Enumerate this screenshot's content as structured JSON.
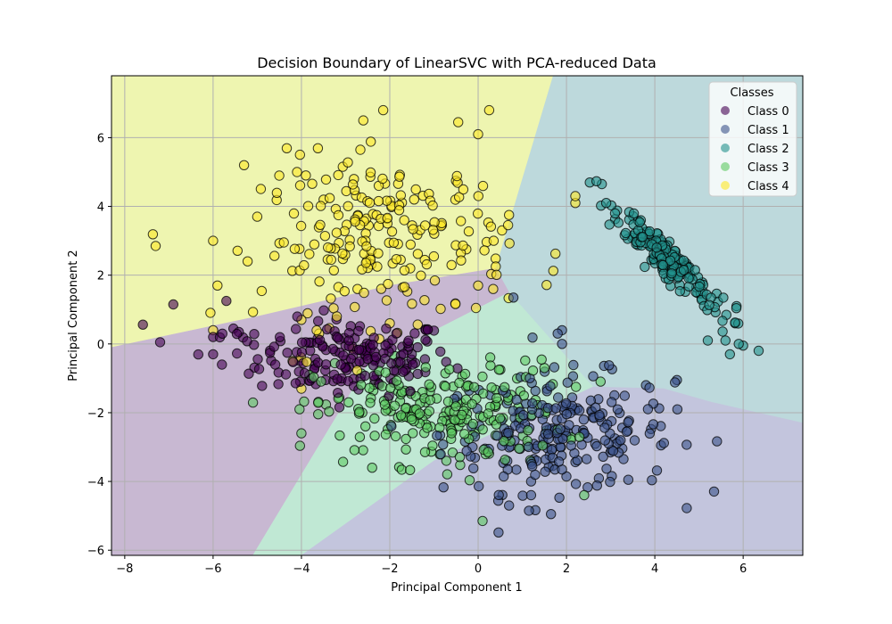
{
  "chart_data": {
    "type": "scatter",
    "title": "Decision Boundary of LinearSVC with PCA-reduced Data",
    "xlabel": "Principal Component 1",
    "ylabel": "Principal Component 2",
    "xlim": [
      -8.3,
      7.35
    ],
    "ylim": [
      -6.15,
      7.8
    ],
    "xticks": [
      -8,
      -6,
      -4,
      -2,
      0,
      2,
      4,
      6
    ],
    "yticks": [
      -6,
      -4,
      -2,
      0,
      2,
      4,
      6
    ],
    "xtick_labels": [
      "−8",
      "−6",
      "−4",
      "−2",
      "0",
      "2",
      "4",
      "6"
    ],
    "ytick_labels": [
      "−6",
      "−4",
      "−2",
      "0",
      "2",
      "4",
      "6"
    ],
    "grid": true,
    "legend": {
      "title": "Classes",
      "position": "top-right"
    },
    "regions": [
      {
        "class": "Class 4",
        "color": "#eef5b0",
        "polygon": [
          [
            -8.3,
            -0.1
          ],
          [
            -5.0,
            0.8
          ],
          [
            -2.0,
            1.7
          ],
          [
            0.4,
            2.2
          ],
          [
            1.7,
            7.8
          ],
          [
            -8.3,
            7.8
          ]
        ]
      },
      {
        "class": "Class 2",
        "color": "#bdd9dc",
        "polygon": [
          [
            1.7,
            7.8
          ],
          [
            7.35,
            7.8
          ],
          [
            7.35,
            -2.3
          ],
          [
            5.3,
            -1.7
          ],
          [
            4.2,
            -1.3
          ],
          [
            2.6,
            -1.25
          ],
          [
            0.7,
            1.5
          ],
          [
            0.4,
            2.2
          ]
        ]
      },
      {
        "class": "Class 0",
        "color": "#c8b8d2",
        "polygon": [
          [
            -8.3,
            -0.1
          ],
          [
            -5.0,
            0.8
          ],
          [
            -2.0,
            1.7
          ],
          [
            0.4,
            2.2
          ],
          [
            0.7,
            1.5
          ],
          [
            -2.5,
            -0.6
          ],
          [
            -5.1,
            -6.15
          ],
          [
            -8.3,
            -6.15
          ]
        ]
      },
      {
        "class": "Class 3",
        "color": "#c0e8d4",
        "polygon": [
          [
            -5.1,
            -6.15
          ],
          [
            -2.5,
            -0.6
          ],
          [
            0.7,
            1.5
          ],
          [
            2.6,
            -1.25
          ],
          [
            -1.0,
            -3.4
          ],
          [
            -4.0,
            -6.15
          ]
        ]
      },
      {
        "class": "Class 1",
        "color": "#c3c5dd",
        "polygon": [
          [
            -4.0,
            -6.15
          ],
          [
            -1.0,
            -3.4
          ],
          [
            2.6,
            -1.25
          ],
          [
            4.2,
            -1.3
          ],
          [
            5.3,
            -1.7
          ],
          [
            7.35,
            -2.3
          ],
          [
            7.35,
            -6.15
          ]
        ]
      }
    ],
    "series": [
      {
        "name": "Class 0",
        "color": "#440154",
        "clusters": [
          {
            "center": [
              -2.8,
              -0.4
            ],
            "spread": [
              1.1,
              0.55
            ],
            "count": 170
          },
          {
            "center": [
              -5.5,
              0.1
            ],
            "spread": [
              0.6,
              0.4
            ],
            "count": 12
          }
        ],
        "points": [
          [
            -6.9,
            1.15
          ],
          [
            -5.7,
            1.25
          ],
          [
            -7.2,
            0.05
          ],
          [
            -6.0,
            0.2
          ],
          [
            -5.8,
            -0.6
          ],
          [
            -6.0,
            -0.3
          ]
        ]
      },
      {
        "name": "Class 1",
        "color": "#3b528b",
        "clusters": [
          {
            "center": [
              1.8,
              -2.6
            ],
            "spread": [
              1.3,
              0.85
            ],
            "count": 230
          }
        ],
        "points": [
          [
            0.8,
            1.35
          ],
          [
            1.8,
            0.3
          ],
          [
            1.9,
            0.4
          ],
          [
            1.9,
            -0.0
          ],
          [
            3.8,
            -1.2
          ],
          [
            4.5,
            -1.05
          ],
          [
            3.4,
            -3.95
          ],
          [
            0.7,
            -4.7
          ],
          [
            1.2,
            -4.4
          ],
          [
            1.15,
            -4.85
          ],
          [
            1.65,
            -4.95
          ],
          [
            1.2,
            -4.0
          ]
        ]
      },
      {
        "name": "Class 2",
        "color": "#21918c",
        "clusters": [
          {
            "center": [
              4.3,
              2.4
            ],
            "spread": [
              0.6,
              0.9
            ],
            "count": 180
          }
        ],
        "points": [
          [
            2.8,
            4.65
          ],
          [
            2.9,
            4.1
          ],
          [
            3.1,
            3.8
          ],
          [
            5.6,
            0.1
          ],
          [
            5.9,
            0.0
          ],
          [
            6.0,
            -0.05
          ],
          [
            6.35,
            -0.2
          ],
          [
            5.85,
            1.1
          ],
          [
            5.7,
            -0.3
          ],
          [
            5.2,
            0.1
          ]
        ]
      },
      {
        "name": "Class 3",
        "color": "#5ec962",
        "clusters": [
          {
            "center": [
              -0.9,
              -2.0
            ],
            "spread": [
              1.4,
              0.75
            ],
            "count": 230
          }
        ],
        "points": [
          [
            0.1,
            -5.15
          ],
          [
            2.4,
            -4.4
          ],
          [
            -4.0,
            -2.6
          ],
          [
            -2.4,
            -3.6
          ],
          [
            1.5,
            -0.7
          ]
        ]
      },
      {
        "name": "Class 4",
        "color": "#fde725",
        "clusters": [
          {
            "center": [
              -2.1,
              3.0
            ],
            "spread": [
              1.4,
              1.2
            ],
            "count": 210
          }
        ],
        "points": [
          [
            -7.3,
            2.85
          ],
          [
            -6.0,
            3.0
          ],
          [
            -5.9,
            1.7
          ],
          [
            -5.3,
            5.2
          ],
          [
            -2.6,
            6.5
          ],
          [
            -2.15,
            6.8
          ],
          [
            -0.45,
            6.45
          ],
          [
            0.25,
            6.8
          ],
          [
            0.0,
            6.1
          ],
          [
            -5.0,
            3.7
          ],
          [
            -4.1,
            5.0
          ],
          [
            -3.9,
            4.9
          ],
          [
            -4.0,
            0.7
          ],
          [
            -4.0,
            -1.3
          ],
          [
            -4.2,
            -0.5
          ],
          [
            -3.6,
            0.3
          ],
          [
            -3.2,
            0.8
          ],
          [
            2.2,
            4.3
          ],
          [
            2.2,
            4.1
          ],
          [
            0.7,
            3.75
          ],
          [
            0.35,
            3.0
          ],
          [
            0.4,
            2.25
          ],
          [
            0.0,
            1.7
          ],
          [
            -6.0,
            0.4
          ],
          [
            -2.0,
            0.6
          ]
        ]
      }
    ]
  }
}
